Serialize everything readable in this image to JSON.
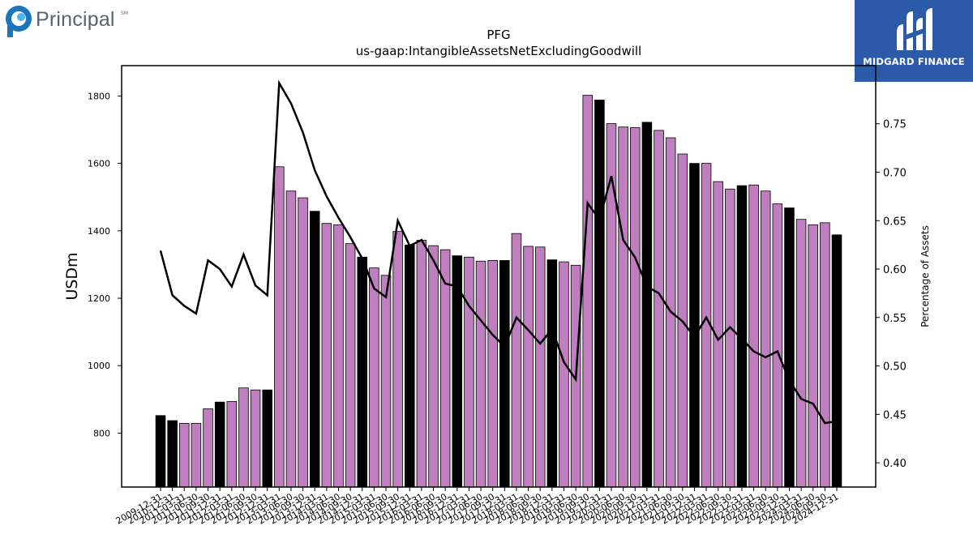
{
  "brand_left": {
    "name": "Principal",
    "mark": "SM",
    "icon": "principal-logo-icon",
    "color": "#1a75bc"
  },
  "brand_right": {
    "name": "MIDGARD FINANCE",
    "icon": "midgard-logo-icon",
    "background": "#2a5aa8"
  },
  "chart_data": {
    "type": "bar",
    "title": "PFG",
    "subtitle": "us-gaap:IntangibleAssetsNetExcludingGoodwill",
    "ylabel": "USDm",
    "y2label": "Percentage of Assets",
    "ylim": [
      640,
      1890
    ],
    "y2lim": [
      0.375,
      0.81
    ],
    "yticks": [
      800,
      1000,
      1200,
      1400,
      1600,
      1800
    ],
    "y2ticks": [
      "0.40",
      "0.45",
      "0.50",
      "0.55",
      "0.60",
      "0.65",
      "0.70",
      "0.75"
    ],
    "grid": false,
    "colors": {
      "annual": "#000000",
      "quarterly": "#bf7fbf",
      "line": "#000000"
    },
    "categories": [
      "2009-12-31",
      "2010-12-31",
      "2011-03-31",
      "2011-06-30",
      "2011-09-30",
      "2011-12-31",
      "2012-03-31",
      "2012-06-30",
      "2012-09-30",
      "2012-12-31",
      "2013-03-31",
      "2013-06-30",
      "2013-09-30",
      "2013-12-31",
      "2014-03-31",
      "2014-06-30",
      "2014-09-30",
      "2014-12-31",
      "2015-03-31",
      "2015-06-30",
      "2015-09-30",
      "2015-12-31",
      "2016-03-31",
      "2016-06-30",
      "2016-09-30",
      "2016-12-31",
      "2017-03-31",
      "2017-06-30",
      "2017-09-30",
      "2017-12-31",
      "2018-03-31",
      "2018-06-30",
      "2018-09-30",
      "2018-12-31",
      "2019-03-31",
      "2019-06-30",
      "2019-09-30",
      "2019-12-31",
      "2020-03-31",
      "2020-06-30",
      "2020-09-30",
      "2020-12-31",
      "2021-03-31",
      "2021-06-30",
      "2021-09-30",
      "2021-12-31",
      "2022-03-31",
      "2022-06-30",
      "2022-09-30",
      "2022-12-31",
      "2023-03-31",
      "2023-06-30",
      "2023-09-30",
      "2023-12-31",
      "2024-03-31",
      "2024-06-30",
      "2024-09-30",
      "2024-12-31"
    ],
    "series": [
      {
        "kind": "bar",
        "values": [
          852,
          837,
          829,
          829,
          872,
          892,
          894,
          934,
          928,
          928,
          1590,
          1518,
          1498,
          1458,
          1422,
          1418,
          1362,
          1322,
          1290,
          1268,
          1398,
          1358,
          1372,
          1356,
          1344,
          1326,
          1322,
          1310,
          1312,
          1312,
          1392,
          1354,
          1352,
          1314,
          1308,
          1298,
          1802,
          1788,
          1718,
          1708,
          1706,
          1722,
          1698,
          1676,
          1628,
          1600,
          1600,
          1546,
          1524,
          1534,
          1536,
          1518,
          1480,
          1468,
          1434,
          1418,
          1424,
          1388
        ],
        "annual_flags": [
          1,
          1,
          0,
          0,
          0,
          1,
          0,
          0,
          0,
          1,
          0,
          0,
          0,
          1,
          0,
          0,
          0,
          1,
          0,
          0,
          0,
          1,
          0,
          0,
          0,
          1,
          0,
          0,
          0,
          1,
          0,
          0,
          0,
          1,
          0,
          0,
          0,
          1,
          0,
          0,
          0,
          1,
          0,
          0,
          0,
          1,
          0,
          0,
          0,
          1,
          0,
          0,
          0,
          1,
          0,
          0,
          0,
          1
        ]
      },
      {
        "kind": "line",
        "axis": "right",
        "values": [
          0.619,
          0.573,
          0.562,
          0.554,
          0.609,
          0.6,
          0.582,
          0.615,
          0.583,
          0.573,
          0.792,
          0.771,
          0.741,
          0.702,
          0.675,
          0.653,
          0.633,
          0.611,
          0.58,
          0.571,
          0.65,
          0.624,
          0.63,
          0.609,
          0.585,
          0.582,
          0.562,
          0.547,
          0.532,
          0.52,
          0.55,
          0.537,
          0.523,
          0.538,
          0.504,
          0.486,
          0.668,
          0.651,
          0.696,
          0.63,
          0.612,
          0.582,
          0.575,
          0.556,
          0.546,
          0.53,
          0.55,
          0.527,
          0.54,
          0.528,
          0.515,
          0.509,
          0.515,
          0.485,
          0.466,
          0.461,
          0.441,
          0.443
        ]
      }
    ]
  }
}
